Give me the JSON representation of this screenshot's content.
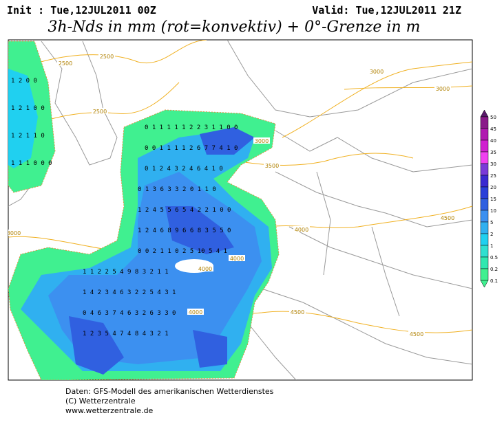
{
  "header": {
    "init": "Init : Tue,12JUL2011 00Z",
    "valid": "Valid: Tue,12JUL2011 21Z",
    "title": "3h-Nds in mm (rot=konvektiv) + 0°-Grenze in m"
  },
  "legend": {
    "levels": [
      {
        "label": "50",
        "color": "#5a1a6a"
      },
      {
        "label": "45",
        "color": "#8a1a8a"
      },
      {
        "label": "40",
        "color": "#b01ab0"
      },
      {
        "label": "35",
        "color": "#d020d0"
      },
      {
        "label": "30",
        "color": "#f040f0"
      },
      {
        "label": "25",
        "color": "#7a3ad8"
      },
      {
        "label": "20",
        "color": "#3a2ad0"
      },
      {
        "label": "15",
        "color": "#2a40d8"
      },
      {
        "label": "10",
        "color": "#3060e0"
      },
      {
        "label": "5",
        "color": "#3c90f0"
      },
      {
        "label": "2",
        "color": "#30b0f0"
      },
      {
        "label": "1",
        "color": "#20d0f0"
      },
      {
        "label": "0.5",
        "color": "#30e0d0"
      },
      {
        "label": "0.2",
        "color": "#30e8b0"
      },
      {
        "label": "0.1",
        "color": "#40f090"
      }
    ]
  },
  "map": {
    "contour_labels": [
      "2500",
      "2500",
      "2500",
      "3000",
      "3000",
      "3000",
      "3500",
      "4000",
      "4500",
      "4000",
      "4000",
      "4000",
      "4500",
      "4500",
      "3000"
    ],
    "precip_rows": [
      "0 1 1 1 1 1 2 2 3 1 1 0 0",
      "0 0 1 1 1 1 2 6 7 7 4 1 0",
      "0 1 2 4 3 2 4 6 4 1 0",
      "0 1 3 6 3 3 2 0 1 1 0",
      "1 2 4 5 5 6 5 4 2 2 1 0 0",
      "1 2 4 6 8 9 6 6 8 3 5 5 0",
      "0 0 2 1 1 0 2 5 10 5 4 1",
      "1 1 2 2 5 4 9 8 3 2 1 1",
      "1 4 2 3 4 6 3 2 2 5 4 3 1",
      "0 4 6 3 7 4 6 3 2 6 3 3 0",
      "1 2 3 5 4 7 4 8 4 3 2 1"
    ],
    "uk_rows": [
      "1 2 0 0",
      "1 2 1 0 0",
      "1 2 1 1 0",
      "1 1 1 0 0 0"
    ]
  },
  "footer": [
    "Daten: GFS-Modell des amerikanischen Wetterdienstes",
    "(C) Wetterzentrale",
    "www.wetterzentrale.de"
  ]
}
